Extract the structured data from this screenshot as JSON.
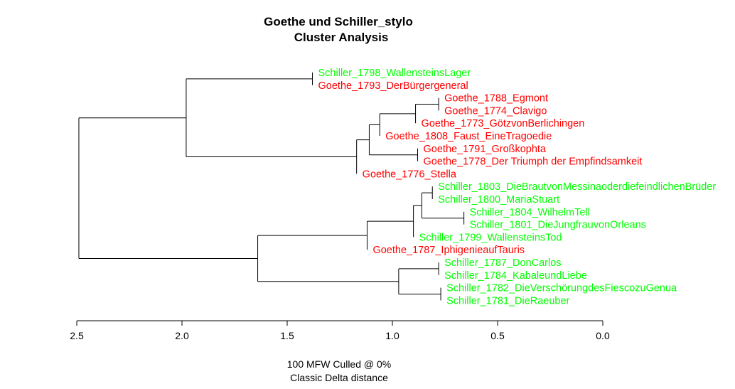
{
  "chart_data": {
    "type": "dendrogram",
    "title": "Goethe und Schiller_stylo",
    "subtitle": "Cluster Analysis",
    "footer_lines": [
      "100 MFW  Culled @ 0%",
      "Classic Delta distance"
    ],
    "x_axis": {
      "range": [
        2.5,
        0.0
      ],
      "ticks": [
        "2.5",
        "2.0",
        "1.5",
        "1.0",
        "0.5",
        "0.0"
      ]
    },
    "colors": {
      "Goethe": "#ff0000",
      "Schiller": "#00ff00"
    },
    "leaves": [
      {
        "label": "Schiller_1798_WallensteinsLager",
        "author": "Schiller"
      },
      {
        "label": "Goethe_1793_DerBürgergeneral",
        "author": "Goethe"
      },
      {
        "label": "Goethe_1788_Egmont",
        "author": "Goethe"
      },
      {
        "label": "Goethe_1774_Clavigo",
        "author": "Goethe"
      },
      {
        "label": "Goethe_1773_GötzvonBerlichingen",
        "author": "Goethe"
      },
      {
        "label": "Goethe_1808_Faust_EineTragoedie",
        "author": "Goethe"
      },
      {
        "label": "Goethe_1791_Großkophta",
        "author": "Goethe"
      },
      {
        "label": "Goethe_1778_Der Triumph der Empfindsamkeit",
        "author": "Goethe"
      },
      {
        "label": "Goethe_1776_Stella",
        "author": "Goethe"
      },
      {
        "label": "Schiller_1803_DieBrautvonMessinaoderdiefeindlichenBrüder",
        "author": "Schiller"
      },
      {
        "label": "Schiller_1800_MariaStuart",
        "author": "Schiller"
      },
      {
        "label": "Schiller_1804_WilhelmTell",
        "author": "Schiller"
      },
      {
        "label": "Schiller_1801_DieJungfrauvonOrleans",
        "author": "Schiller"
      },
      {
        "label": "Schiller_1799_WallensteinsTod",
        "author": "Schiller"
      },
      {
        "label": "Goethe_1787_IphigenieaufTauris",
        "author": "Goethe"
      },
      {
        "label": "Schiller_1787_DonCarlos",
        "author": "Schiller"
      },
      {
        "label": "Schiller_1784_KabaleundLiebe",
        "author": "Schiller"
      },
      {
        "label": "Schiller_1782_DieVerschörungdesFiescozuGenua",
        "author": "Schiller"
      },
      {
        "label": "Schiller_1781_DieRaeuber",
        "author": "Schiller"
      }
    ],
    "merges": [
      {
        "name": "A",
        "children": [
          "L0",
          "L1"
        ],
        "height": 1.38
      },
      {
        "name": "B",
        "children": [
          "L2",
          "L3"
        ],
        "height": 0.78
      },
      {
        "name": "C",
        "children": [
          "B",
          "L4"
        ],
        "height": 0.89
      },
      {
        "name": "D",
        "children": [
          "C",
          "L5"
        ],
        "height": 1.06
      },
      {
        "name": "E",
        "children": [
          "L6",
          "L7"
        ],
        "height": 0.88
      },
      {
        "name": "F",
        "children": [
          "D",
          "E"
        ],
        "height": 1.11
      },
      {
        "name": "G",
        "children": [
          "F",
          "L8"
        ],
        "height": 1.17
      },
      {
        "name": "H",
        "children": [
          "A",
          "G"
        ],
        "height": 1.98
      },
      {
        "name": "I",
        "children": [
          "L9",
          "L10"
        ],
        "height": 0.81
      },
      {
        "name": "J",
        "children": [
          "L11",
          "L12"
        ],
        "height": 0.66
      },
      {
        "name": "K",
        "children": [
          "I",
          "J"
        ],
        "height": 0.86
      },
      {
        "name": "M",
        "children": [
          "K",
          "L13"
        ],
        "height": 0.9
      },
      {
        "name": "N",
        "children": [
          "M",
          "L14"
        ],
        "height": 1.12
      },
      {
        "name": "O",
        "children": [
          "L15",
          "L16"
        ],
        "height": 0.78
      },
      {
        "name": "P",
        "children": [
          "L17",
          "L18"
        ],
        "height": 0.77
      },
      {
        "name": "Q",
        "children": [
          "O",
          "P"
        ],
        "height": 0.97
      },
      {
        "name": "R",
        "children": [
          "N",
          "Q"
        ],
        "height": 1.64
      },
      {
        "name": "S",
        "children": [
          "H",
          "R"
        ],
        "height": 2.49
      }
    ]
  }
}
